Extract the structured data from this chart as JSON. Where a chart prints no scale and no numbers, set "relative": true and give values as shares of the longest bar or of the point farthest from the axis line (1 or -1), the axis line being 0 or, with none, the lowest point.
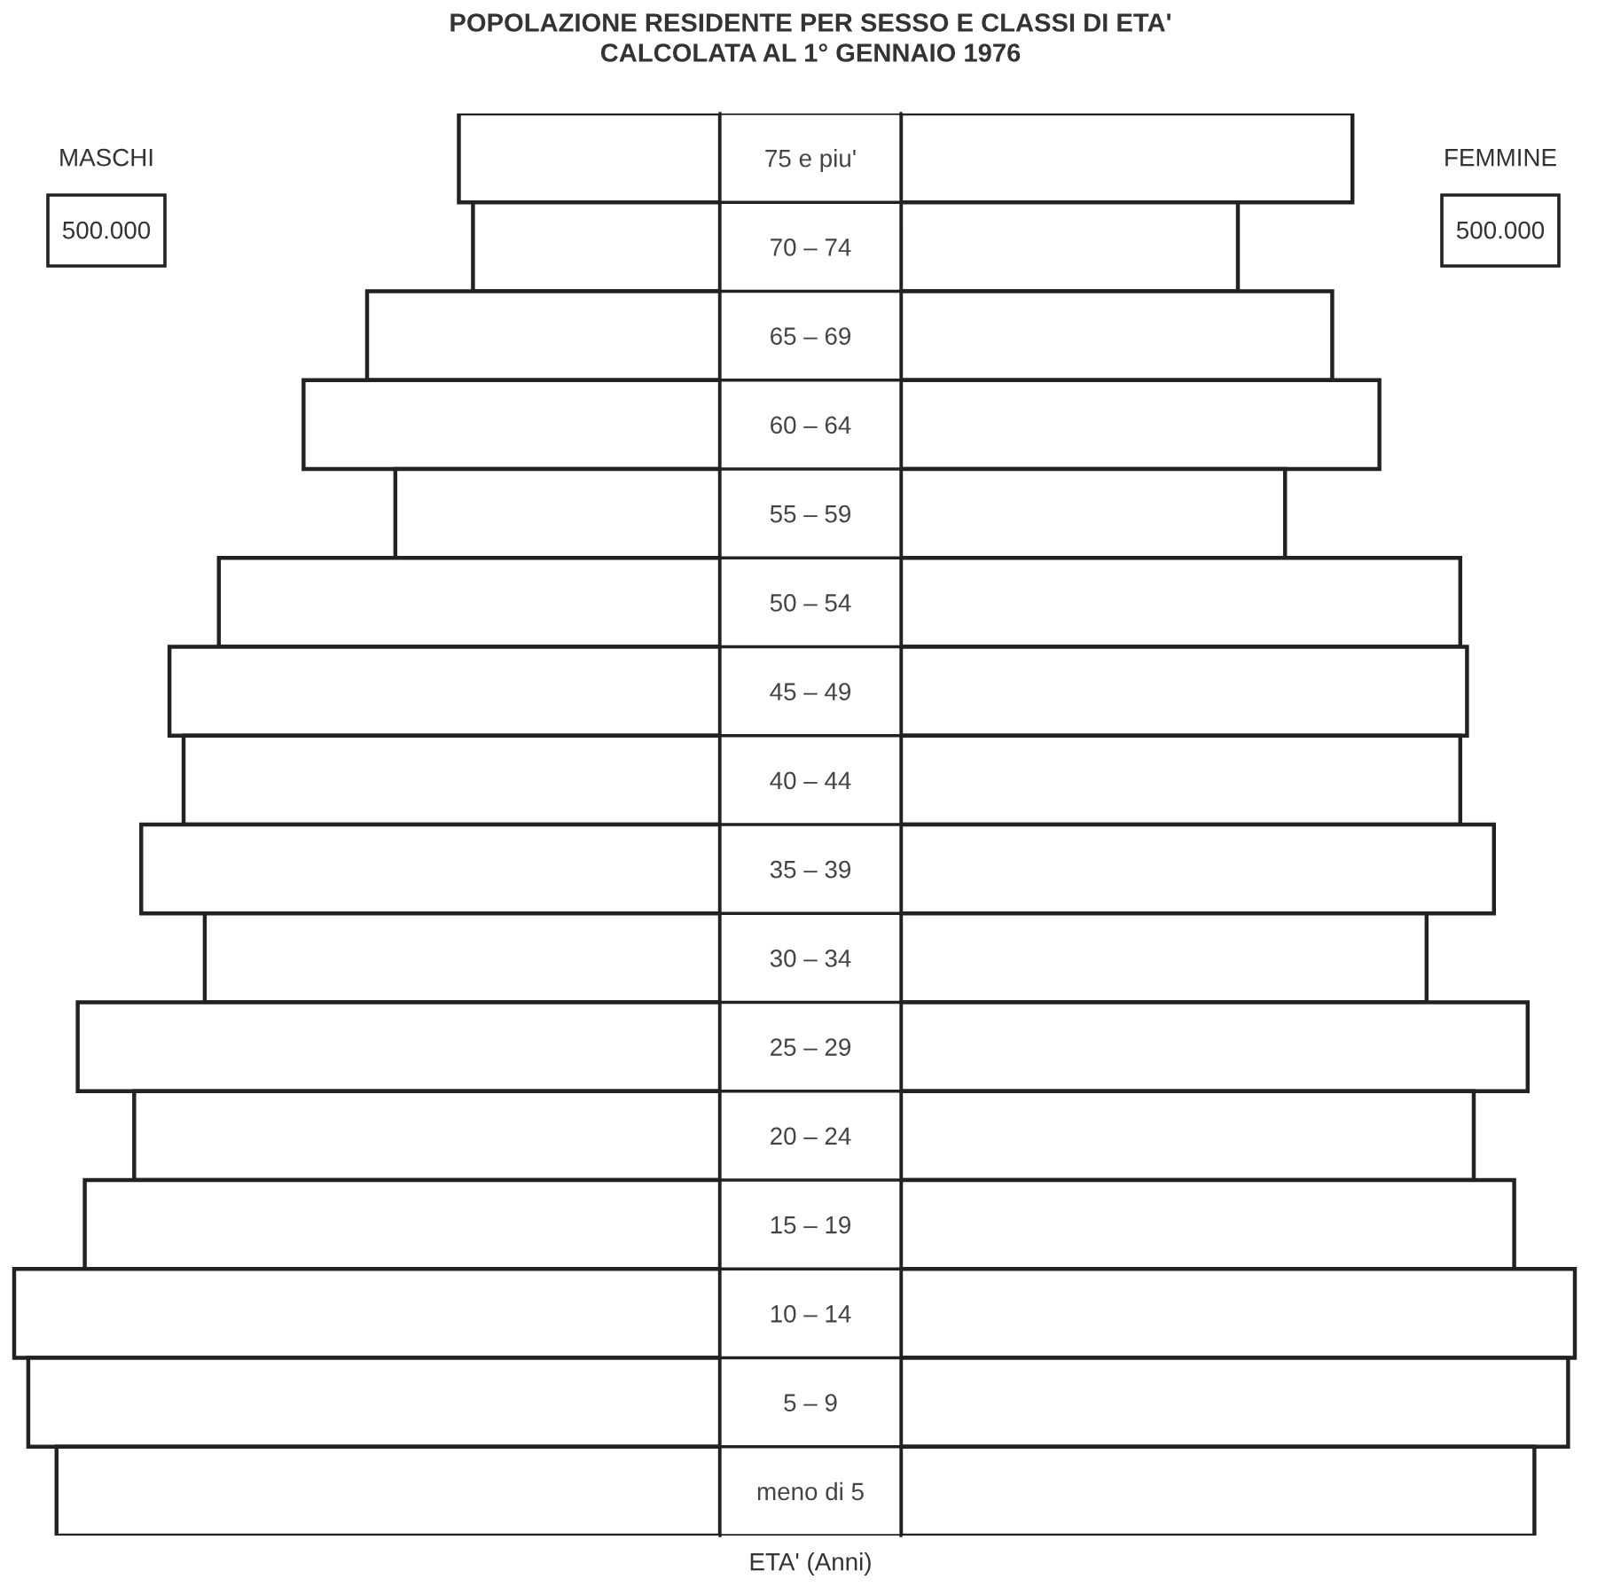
{
  "chart_data": [
    {
      "type": "bar",
      "orientation": "horizontal",
      "relative": true,
      "title": "POPOLAZIONE RESIDENTE PER SESSO E CLASSI DI ETA'",
      "subtitle": "CALCOLATA AL 1° GENNAIO 1976",
      "xlabel": "ETA' (Anni)",
      "categories": [
        "75 e piu'",
        "70 – 74",
        "65 – 69",
        "60 – 64",
        "55 – 59",
        "50 – 54",
        "45 – 49",
        "40 – 44",
        "35 – 39",
        "30 – 34",
        "25 – 29",
        "20 – 24",
        "15 – 19",
        "10 – 14",
        "5 – 9",
        "meno di 5"
      ],
      "series": [
        {
          "name": "MASCHI",
          "color": "#ffffff",
          "values": [
            0.37,
            0.35,
            0.5,
            0.59,
            0.46,
            0.71,
            0.78,
            0.76,
            0.82,
            0.73,
            0.91,
            0.83,
            0.9,
            1.0,
            0.98,
            0.94
          ]
        }
      ],
      "annotations": [
        "500.000"
      ],
      "legend": false
    },
    {
      "type": "bar",
      "orientation": "horizontal",
      "relative": true,
      "categories": [
        null,
        null,
        null,
        null,
        null,
        null,
        null,
        null,
        null,
        null,
        null,
        null,
        null,
        null,
        null,
        null
      ],
      "series": [
        {
          "name": "FEMMINE",
          "color": "#ffffff",
          "values": [
            0.67,
            0.5,
            0.64,
            0.71,
            0.57,
            0.83,
            0.84,
            0.83,
            0.88,
            0.78,
            0.93,
            0.85,
            0.91,
            1.0,
            0.99,
            0.94
          ]
        }
      ],
      "annotations": [
        "500.000"
      ],
      "legend": false
    }
  ]
}
